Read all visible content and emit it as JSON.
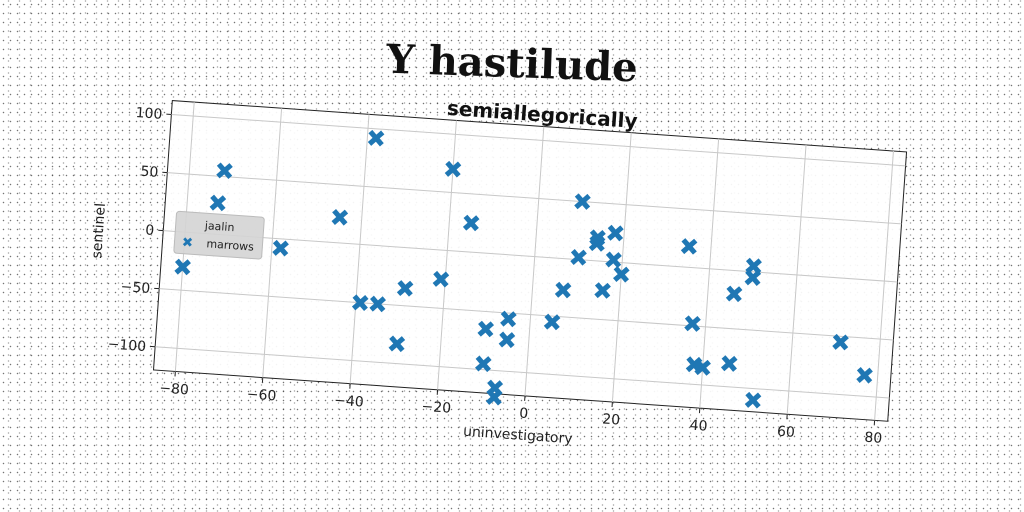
{
  "page_title": "Y hastilude",
  "chart_data": {
    "type": "scatter",
    "title": "semiallegorically",
    "xlabel": "uninvestigatory",
    "ylabel": "sentinel",
    "xlim": [
      -85,
      83
    ],
    "ylim": [
      -120,
      112
    ],
    "xticks": [
      -80,
      -60,
      -40,
      -20,
      0,
      20,
      40,
      60,
      80
    ],
    "yticks": [
      -100,
      -50,
      0,
      50,
      100
    ],
    "grid": true,
    "marker": "X",
    "color": "#1f77b4",
    "legend": {
      "title": "jaalin",
      "placement": "center-left",
      "entries": [
        "marrows"
      ]
    },
    "series": [
      {
        "name": "marrows",
        "points": [
          [
            -80,
            -30
          ],
          [
            -73,
            27
          ],
          [
            -72,
            55
          ],
          [
            -58,
            -8
          ],
          [
            -45,
            22
          ],
          [
            -38,
            92
          ],
          [
            -39,
            -50
          ],
          [
            -35,
            -50
          ],
          [
            -30,
            -83
          ],
          [
            -29,
            -35
          ],
          [
            -21,
            -25
          ],
          [
            -20,
            70
          ],
          [
            -15,
            25
          ],
          [
            -10,
            -65
          ],
          [
            -10,
            -95
          ],
          [
            -7,
            -115
          ],
          [
            -7,
            -123
          ],
          [
            -5,
            -55
          ],
          [
            -5,
            -73
          ],
          [
            5,
            -55
          ],
          [
            7,
            -27
          ],
          [
            10,
            50
          ],
          [
            10,
            2
          ],
          [
            14,
            15
          ],
          [
            14,
            20
          ],
          [
            16,
            -25
          ],
          [
            18,
            2
          ],
          [
            18,
            25
          ],
          [
            20,
            -10
          ],
          [
            35,
            18
          ],
          [
            37,
            -48
          ],
          [
            38,
            -83
          ],
          [
            40,
            -85
          ],
          [
            46,
            -80
          ],
          [
            46,
            -20
          ],
          [
            50,
            -5
          ],
          [
            50,
            5
          ],
          [
            52,
            -110
          ],
          [
            71,
            -55
          ],
          [
            77,
            -82
          ]
        ]
      }
    ]
  }
}
